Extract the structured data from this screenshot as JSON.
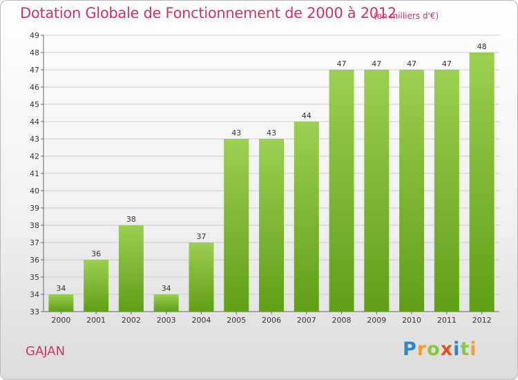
{
  "header": {
    "title": "Dotation Globale de Fonctionnement de 2000 à 2012",
    "unit_note": "(en milliers d'€)"
  },
  "footer": {
    "place": "GAJAN",
    "logo_text": "Proxiti"
  },
  "colors": {
    "title": "#cc3366",
    "bar_top": "#9ccf50",
    "bar_bottom": "#5f9f15",
    "grid": "#cccccc"
  },
  "chart_data": {
    "type": "bar",
    "title": "Dotation Globale de Fonctionnement de 2000 à 2012",
    "subtitle": "(en milliers d'€)",
    "xlabel": "",
    "ylabel": "",
    "categories": [
      "2000",
      "2001",
      "2002",
      "2003",
      "2004",
      "2005",
      "2006",
      "2007",
      "2008",
      "2009",
      "2010",
      "2011",
      "2012"
    ],
    "values": [
      34,
      36,
      38,
      34,
      37,
      43,
      43,
      44,
      47,
      47,
      47,
      47,
      48
    ],
    "ylim": [
      33,
      49
    ],
    "yticks": [
      33,
      34,
      35,
      36,
      37,
      38,
      39,
      40,
      41,
      42,
      43,
      44,
      45,
      46,
      47,
      48,
      49
    ],
    "grid": true,
    "data_labels": true
  }
}
